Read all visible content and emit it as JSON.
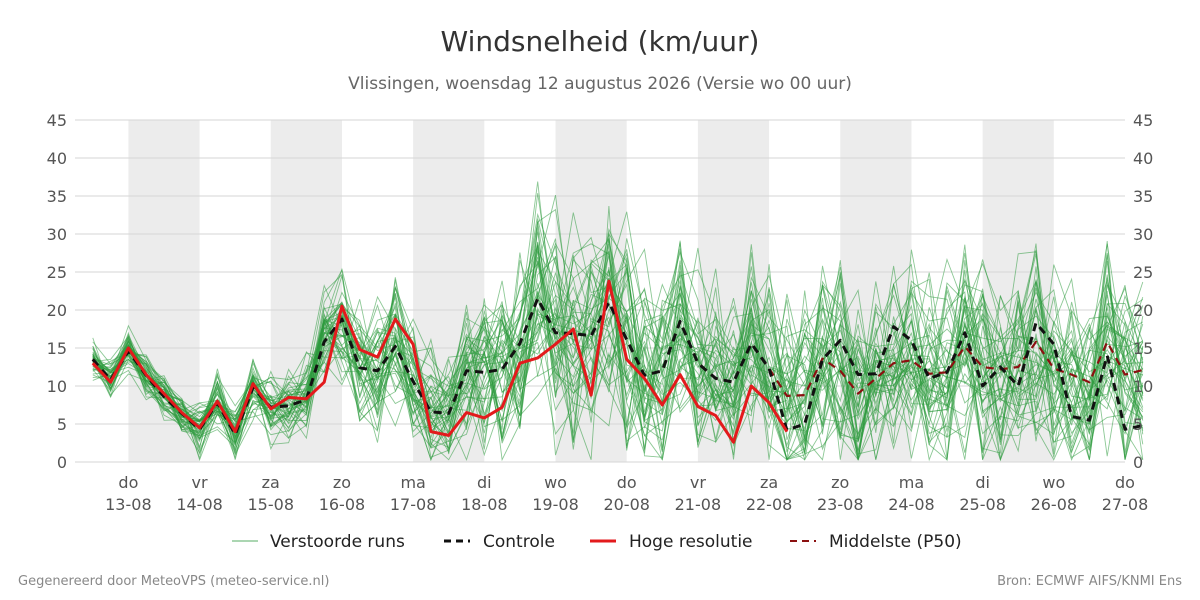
{
  "chart_data": {
    "type": "line",
    "title": "Windsnelheid (km/uur)",
    "subtitle": "Vlissingen, woensdag 12 augustus 2026 (Versie wo 00 uur)",
    "ylim": [
      0,
      45
    ],
    "y_ticks": [
      0,
      5,
      10,
      15,
      20,
      25,
      30,
      35,
      40,
      45
    ],
    "x_range_days": [
      -0.75,
      14.0
    ],
    "x_ticks": [
      {
        "day": "do",
        "date": "13-08"
      },
      {
        "day": "vr",
        "date": "14-08"
      },
      {
        "day": "za",
        "date": "15-08"
      },
      {
        "day": "zo",
        "date": "16-08"
      },
      {
        "day": "ma",
        "date": "17-08"
      },
      {
        "day": "di",
        "date": "18-08"
      },
      {
        "day": "wo",
        "date": "19-08"
      },
      {
        "day": "do",
        "date": "20-08"
      },
      {
        "day": "vr",
        "date": "21-08"
      },
      {
        "day": "za",
        "date": "22-08"
      },
      {
        "day": "zo",
        "date": "23-08"
      },
      {
        "day": "ma",
        "date": "24-08"
      },
      {
        "day": "di",
        "date": "25-08"
      },
      {
        "day": "wo",
        "date": "26-08"
      },
      {
        "day": "do",
        "date": "27-08"
      }
    ],
    "grid": true,
    "shaded_days": [
      "13-08",
      "15-08",
      "17-08",
      "19-08",
      "21-08",
      "23-08",
      "25-08"
    ],
    "step_hours": 6,
    "legend_position": "bottom",
    "series": [
      {
        "name": "Hoge resolutie",
        "color": "#e31a1c",
        "style": "solid",
        "values": [
          13,
          10.5,
          15,
          11.5,
          9,
          6.5,
          4.5,
          8,
          4,
          10.3,
          7,
          8.5,
          8.3,
          10.5,
          20.5,
          14.8,
          13.8,
          18.8,
          15.5,
          4,
          3.5,
          6.5,
          5.8,
          7.2,
          13,
          13.7,
          15.5,
          17.5,
          8.8,
          23.8,
          13.5,
          11,
          7.5,
          11.5,
          7.3,
          6.1,
          2.6,
          10,
          7.8,
          4
        ]
      },
      {
        "name": "Controle",
        "color": "#111111",
        "style": "dashed",
        "values": [
          13.5,
          10.8,
          14.6,
          11.4,
          8.6,
          6.4,
          4.3,
          7.8,
          3.6,
          9.8,
          7.2,
          7.4,
          8.2,
          15.8,
          18.8,
          12.4,
          12.0,
          15.2,
          10.6,
          6.6,
          6.4,
          12.0,
          11.8,
          12.2,
          15.6,
          21.5,
          17.0,
          16.9,
          16.6,
          21.0,
          16.1,
          11.4,
          12.0,
          18.5,
          13.0,
          11.0,
          10.5,
          15.6,
          12.3,
          4.2,
          5.0,
          13.5,
          16.0,
          11.5,
          11.6,
          17.8,
          16.0,
          11.0,
          11.8,
          17.0,
          10.0,
          12.5,
          10.0,
          18.3,
          15.5,
          6.0,
          5.5,
          14.0,
          4.3,
          4.8
        ]
      },
      {
        "name": "Middelste (P50)",
        "color": "#8b1010",
        "style": "dashed",
        "values": [
          13.5,
          10.8,
          14.6,
          11.4,
          8.6,
          6.4,
          4.3,
          7.8,
          3.6,
          9.8,
          7.2,
          7.4,
          8.2,
          15.8,
          18.8,
          12.4,
          12.0,
          15.2,
          10.6,
          6.6,
          6.4,
          12.0,
          11.8,
          12.2,
          15.6,
          21.5,
          17.0,
          16.9,
          16.6,
          21.0,
          16.1,
          11.4,
          12.0,
          18.5,
          13.0,
          11.0,
          10.5,
          15.6,
          12.3,
          8.7,
          8.8,
          13.6,
          12.0,
          9.0,
          11.0,
          13.0,
          13.4,
          11.6,
          11.8,
          15.2,
          12.5,
          12.2,
          12.5,
          15.8,
          12.3,
          11.5,
          10.5,
          15.8,
          11.5,
          12.1
        ]
      }
    ],
    "ensemble": {
      "name": "Verstoorde runs",
      "color": "#2e9b3e",
      "members": 50,
      "median": [
        13.5,
        10.8,
        14.6,
        11.4,
        8.6,
        6.4,
        4.3,
        7.8,
        3.6,
        9.8,
        7.2,
        7.4,
        8.2,
        15.8,
        18.8,
        12.4,
        12.0,
        15.2,
        10.6,
        6.6,
        6.4,
        12.0,
        11.8,
        12.2,
        15.6,
        21.5,
        17.0,
        16.9,
        16.6,
        21.0,
        16.1,
        11.4,
        12.0,
        18.5,
        13.0,
        11.0,
        10.5,
        15.6,
        12.3,
        8.7,
        8.8,
        13.6,
        12.0,
        9.0,
        11.0,
        13.0,
        13.4,
        11.6,
        11.8,
        15.2,
        12.5,
        12.2,
        12.5,
        15.8,
        12.3,
        11.5,
        10.5,
        15.8,
        11.5,
        12.1
      ],
      "spread": [
        1.5,
        1.5,
        1.8,
        1.8,
        2,
        2,
        2.2,
        2.3,
        2.4,
        2.6,
        2.8,
        3,
        3.3,
        4.5,
        5,
        5,
        5.5,
        5.5,
        5,
        5,
        5.5,
        6,
        6.5,
        7,
        8,
        9,
        9,
        9,
        9,
        9,
        9,
        8.5,
        8.5,
        8.5,
        8,
        8,
        7.5,
        8,
        8,
        8,
        8,
        8,
        8,
        8,
        8,
        8,
        8,
        8,
        8,
        8,
        8,
        8,
        8,
        8,
        8,
        8,
        8,
        8,
        8,
        8
      ]
    }
  },
  "legend": {
    "items": [
      {
        "label": "Verstoorde runs"
      },
      {
        "label": "Controle"
      },
      {
        "label": "Hoge resolutie"
      },
      {
        "label": "Middelste (P50)"
      }
    ]
  },
  "footer": {
    "left": "Gegenereerd door MeteoVPS (meteo-service.nl)",
    "right": "Bron: ECMWF AIFS/KNMI Ens"
  }
}
